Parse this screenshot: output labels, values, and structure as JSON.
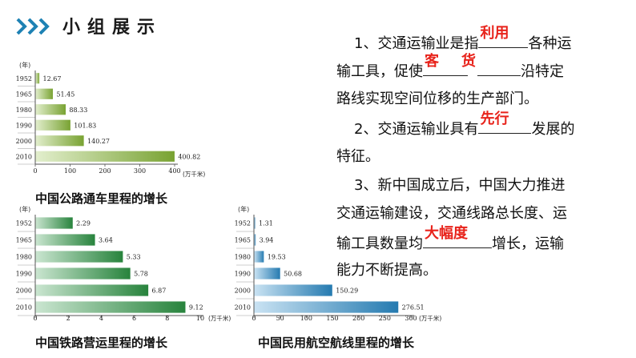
{
  "header": {
    "title": "小组展示",
    "accent": "#1e82b4"
  },
  "charts": [
    {
      "name": "road",
      "type": "bar",
      "caption": "中国公路通车里程的增长",
      "unit_year": "(年)",
      "unit_value": "(万千米)",
      "categories": [
        "1952",
        "1965",
        "1980",
        "1990",
        "2000",
        "2010"
      ],
      "values": [
        12.67,
        51.45,
        88.33,
        101.83,
        140.27,
        400.82
      ],
      "value_labels": [
        "12.67",
        "51.45",
        "88.33",
        "101.83",
        "140.27",
        "400.82"
      ],
      "xlim": [
        0,
        400
      ],
      "ticks": [
        "0",
        "100",
        "200",
        "300",
        "400"
      ],
      "color": "#8dbf3a"
    },
    {
      "name": "rail",
      "type": "bar",
      "caption": "中国铁路营运里程的增长",
      "unit_year": "(年)",
      "unit_value": "(万千米)",
      "categories": [
        "1952",
        "1965",
        "1980",
        "1990",
        "2000",
        "2010"
      ],
      "values": [
        2.29,
        3.64,
        5.33,
        5.78,
        6.87,
        9.12
      ],
      "value_labels": [
        "2.29",
        "3.64",
        "5.33",
        "5.78",
        "6.87",
        "9.12"
      ],
      "xlim": [
        0,
        10
      ],
      "ticks": [
        "0",
        "2",
        "4",
        "6",
        "8",
        "10"
      ],
      "color": "#2e9a47"
    },
    {
      "name": "air",
      "type": "bar",
      "caption": "中国民用航空航线里程的增长",
      "unit_year": "(年)",
      "unit_value": "(万千米)",
      "categories": [
        "1952",
        "1965",
        "1980",
        "1990",
        "2000",
        "2010"
      ],
      "values": [
        1.31,
        3.94,
        19.53,
        50.68,
        150.29,
        276.51
      ],
      "value_labels": [
        "1.31",
        "3.94",
        "19.53",
        "50.68",
        "150.29",
        "276.51"
      ],
      "xlim": [
        0,
        300
      ],
      "ticks": [
        "0",
        "50",
        "100",
        "150",
        "200",
        "250",
        "300"
      ],
      "color": "#2a8fcf"
    }
  ],
  "text": {
    "p1_a": "1、交通运输业是指",
    "p1_fill1": "利用",
    "p1_b": "各种运",
    "p2_a": "输工具，促使",
    "p2_fill": "客",
    "p2_fill2": "货",
    "p2_b": "沿特定",
    "p3": "路线实现空间位移的生产部门。",
    "p4_a": "2、交通运输业具有",
    "p4_fill": "先行",
    "p4_b": "发展的",
    "p5": "特征。",
    "p6": "3、新中国成立后，中国大力推进",
    "p7": "交通运输建设，交通线路总长度、运",
    "p8_a": "输工具数量均",
    "p8_fill": "大幅度",
    "p8_b": "增长，运输",
    "p9": "能力不断提高。"
  }
}
